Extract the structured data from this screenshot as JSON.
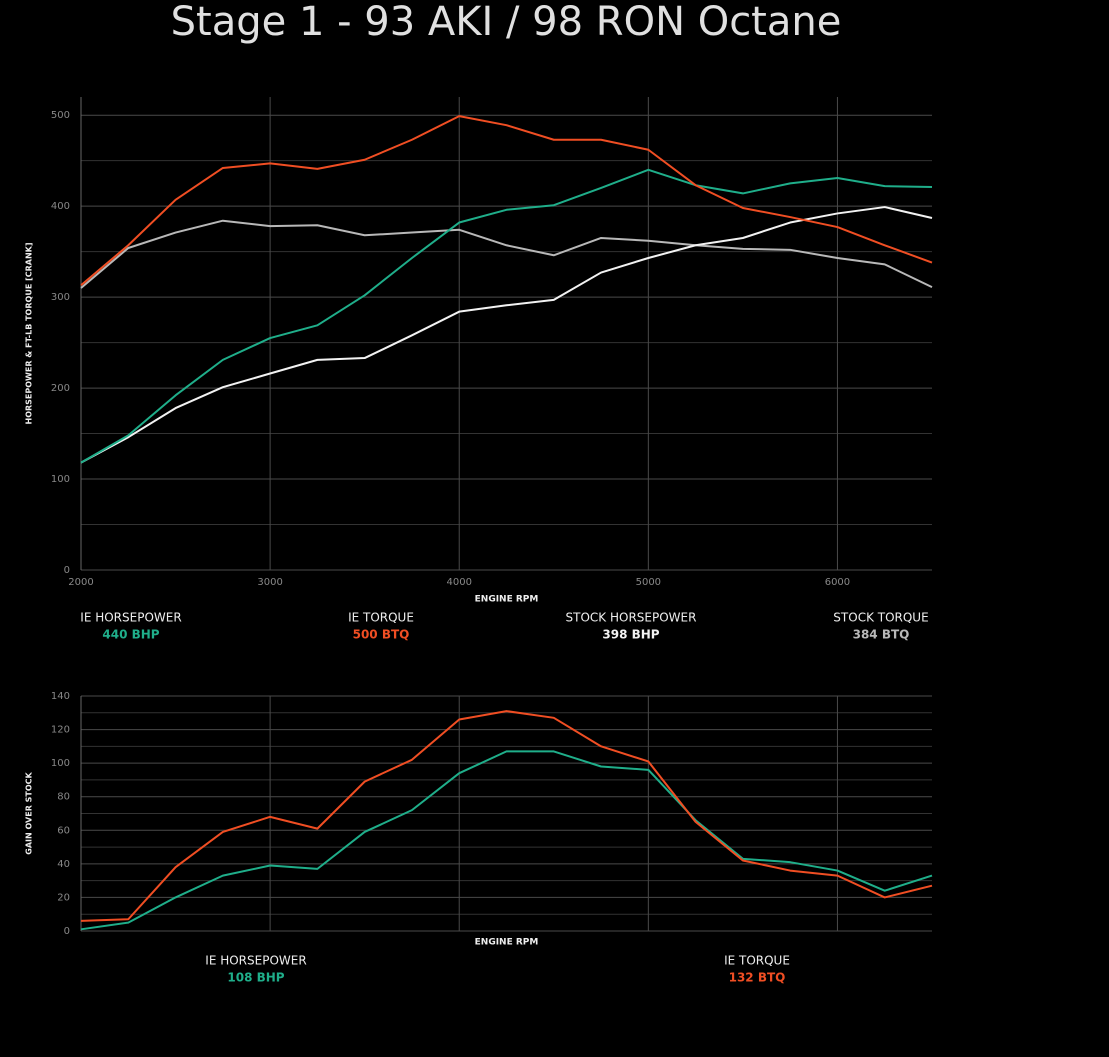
{
  "header": {
    "title": "Stage 1 - 93 AKI / 98 RON Octane"
  },
  "chart_data": [
    {
      "type": "line",
      "xlabel": "ENGINE RPM",
      "ylabel": "HORSEPOWER & FT-LB TORQUE [CRANK]",
      "x": [
        2000,
        2250,
        2500,
        2750,
        3000,
        3250,
        3500,
        3750,
        4000,
        4250,
        4500,
        4750,
        5000,
        5250,
        5500,
        5750,
        6000,
        6250,
        6500
      ],
      "xlim": [
        2000,
        6500
      ],
      "xticks": [
        2000,
        3000,
        4000,
        5000,
        6000
      ],
      "ylim": [
        0,
        520
      ],
      "yticks": [
        0,
        100,
        200,
        300,
        400,
        500
      ],
      "yminor": [
        50,
        150,
        250,
        350,
        450
      ],
      "grid": true,
      "series": [
        {
          "name": "STOCK TORQUE",
          "color": "#b8b8b8",
          "peak_label": "384 BTQ",
          "values": [
            310,
            354,
            371,
            384,
            378,
            379,
            368,
            371,
            374,
            357,
            346,
            365,
            362,
            357,
            353,
            352,
            343,
            336,
            311
          ]
        },
        {
          "name": "STOCK HORSEPOWER",
          "color": "#f2f2f2",
          "peak_label": "398 BHP",
          "values": [
            118,
            146,
            178,
            201,
            216,
            231,
            233,
            258,
            284,
            291,
            297,
            327,
            343,
            357,
            365,
            382,
            392,
            399,
            387
          ]
        },
        {
          "name": "IE HORSEPOWER",
          "color": "#1fae8a",
          "peak_label": "440 BHP",
          "values": [
            118,
            148,
            192,
            231,
            255,
            269,
            302,
            343,
            382,
            396,
            401,
            420,
            440,
            423,
            414,
            425,
            431,
            422,
            421
          ]
        },
        {
          "name": "IE TORQUE",
          "color": "#f04e23",
          "peak_label": "500 BTQ",
          "values": [
            313,
            357,
            407,
            442,
            447,
            441,
            451,
            473,
            499,
            489,
            473,
            473,
            462,
            423,
            398,
            388,
            377,
            357,
            338
          ]
        }
      ]
    },
    {
      "type": "line",
      "xlabel": "ENGINE RPM",
      "ylabel": "GAIN OVER STOCK",
      "x": [
        2000,
        2250,
        2500,
        2750,
        3000,
        3250,
        3500,
        3750,
        4000,
        4250,
        4500,
        4750,
        5000,
        5250,
        5500,
        5750,
        6000,
        6250,
        6500
      ],
      "xlim": [
        2000,
        6500
      ],
      "xgrid": [
        3000,
        4000,
        5000,
        6000
      ],
      "ylim": [
        0,
        140
      ],
      "yticks": [
        0,
        20,
        40,
        60,
        80,
        100,
        120,
        140
      ],
      "yminor": [
        10,
        30,
        50,
        70,
        90,
        110,
        130
      ],
      "grid": true,
      "series": [
        {
          "name": "IE HORSEPOWER",
          "color": "#1fae8a",
          "peak_label": "108 BHP",
          "values": [
            1,
            5,
            20,
            33,
            39,
            37,
            59,
            72,
            94,
            107,
            107,
            98,
            96,
            66,
            43,
            41,
            36,
            24,
            33
          ]
        },
        {
          "name": "IE TORQUE",
          "color": "#f04e23",
          "peak_label": "132 BTQ",
          "values": [
            6,
            7,
            38,
            59,
            68,
            61,
            89,
            102,
            126,
            131,
            127,
            110,
            101,
            65,
            42,
            36,
            33,
            20,
            27
          ]
        }
      ]
    }
  ]
}
